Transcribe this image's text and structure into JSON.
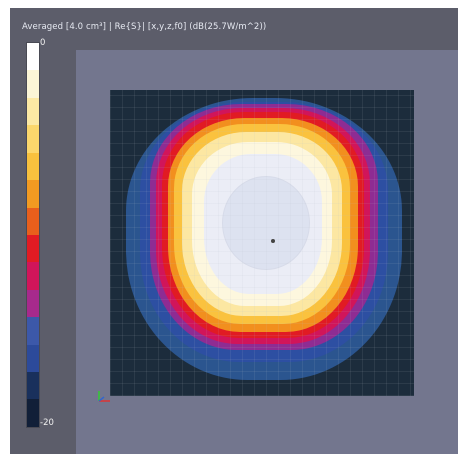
{
  "title": "Averaged [4.0 cm³] | Re{S}| [x,y,z,f0] (dB(25.7W/m^2))",
  "scale": {
    "max_label": "0",
    "min_label": "-20",
    "colors": [
      "#ffffff",
      "#fbf5d6",
      "#fce9a4",
      "#fbd76c",
      "#f8c13e",
      "#f29a21",
      "#e85f1c",
      "#e11b23",
      "#d1155a",
      "#a72a8c",
      "#3c58a9",
      "#2c4a9a",
      "#19305c",
      "#111f38"
    ]
  },
  "field_colors": {
    "background": "#1c2c3c",
    "outer_glow": "#2b558f",
    "blue_ring": "#2d4fa2",
    "purple_ring": "#8e2c93",
    "magenta_ring": "#d1155a",
    "red_ring": "#e11b23",
    "orange_ring": "#f28f1e",
    "yellow_ring": "#fac23e",
    "light_yellow": "#fce7a2",
    "cream": "#fdf7de",
    "center": "#ebedf6",
    "center_circle": "#dbe0ef"
  }
}
